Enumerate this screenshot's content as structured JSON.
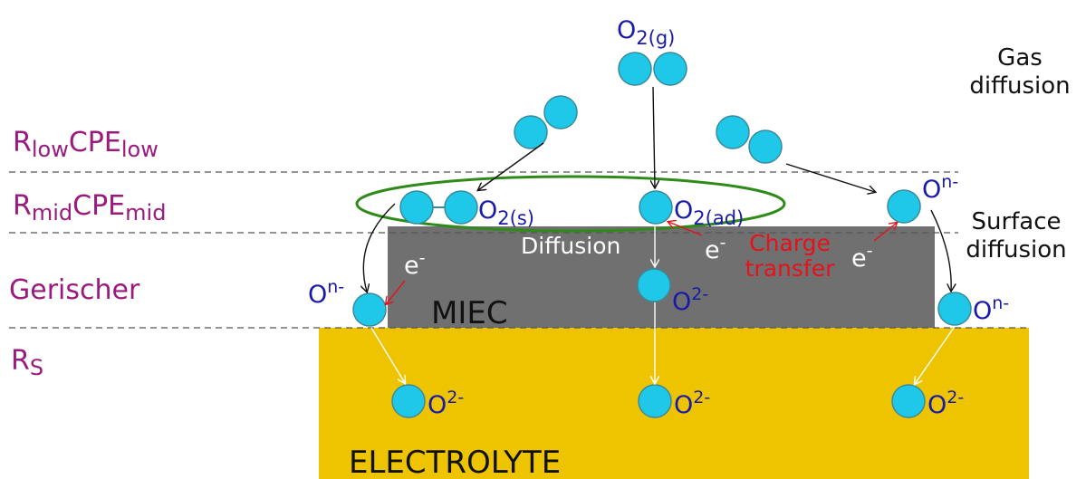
{
  "resistance_labels": {
    "low": {
      "r": "R",
      "r_sub": "low",
      "cpe": "CPE",
      "cpe_sub": "low"
    },
    "mid": {
      "r": "R",
      "r_sub": "mid",
      "cpe": "CPE",
      "cpe_sub": "mid"
    },
    "gerischer": "Gerischer",
    "rs": {
      "r": "R",
      "r_sub": "S"
    }
  },
  "process_labels": {
    "gas_line1": "Gas",
    "gas_line2": "diffusion",
    "surface_line1": "Surface",
    "surface_line2": "diffusion",
    "bulk_diffusion": "Diffusion",
    "charge_line1": "Charge",
    "charge_line2": "transfer"
  },
  "regions": {
    "miec": "MIEC",
    "electrolyte": "ELECTROLYTE"
  },
  "species": {
    "o2_gas": {
      "base": "O",
      "sub": "2(g)"
    },
    "o2_surface": {
      "base": "O",
      "sub": "2(s)"
    },
    "o2_adsorbed": {
      "base": "O",
      "sub": "2(ad)"
    },
    "o_n": {
      "base": "O",
      "sup": "n-"
    },
    "o_2": {
      "base": "O",
      "sup": "2-"
    },
    "electron": {
      "base": "e",
      "sup": "-"
    }
  },
  "colors": {
    "miec": "#707070",
    "electrolyte": "#eec400",
    "atom": "#1fc8e8",
    "resistance_label": "#9b1a7e",
    "species_label": "#1a1aa8",
    "charge_transfer": "#e8101a",
    "ellipse": "#2e8b1a"
  }
}
